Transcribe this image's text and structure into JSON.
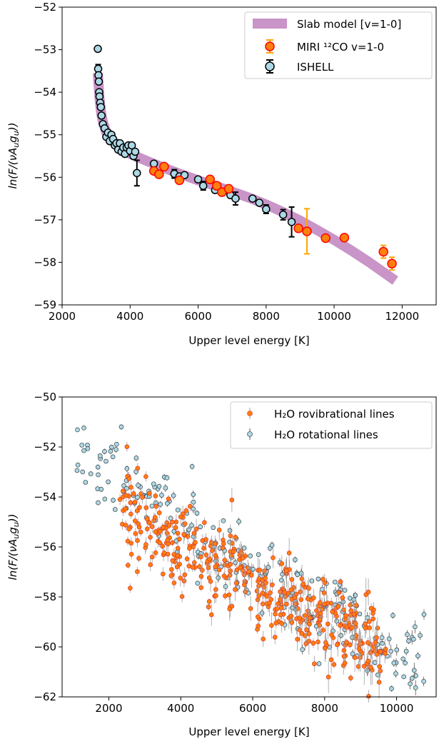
{
  "chart_data": [
    {
      "type": "scatter",
      "xlabel": "Upper level energy [K]",
      "ylabel": "ln(F/(νA_u g_u))",
      "xlim": [
        2000,
        13000
      ],
      "ylim": [
        -59,
        -52
      ],
      "xticks": [
        "2000",
        "4000",
        "6000",
        "8000",
        "10000",
        "12000"
      ],
      "yticks": [
        "−52",
        "−53",
        "−54",
        "−55",
        "−56",
        "−57",
        "−58",
        "−59"
      ],
      "legend_position": "top-right",
      "legend": [
        "Slab model [v=1-0]",
        "MIRI ¹²CO v=1-0",
        "ISHELL"
      ],
      "series": [
        {
          "name": "Slab model [v=1-0]",
          "kind": "band",
          "color": "#c994c7",
          "x": [
            3050,
            3100,
            3150,
            3200,
            3300,
            3450,
            3700,
            4000,
            4500,
            5000,
            5500,
            6000,
            6500,
            7000,
            7500,
            8000,
            8500,
            9000,
            9500,
            10000,
            10500,
            11000,
            11500,
            11800
          ],
          "y": [
            -53.55,
            -54.15,
            -54.5,
            -54.7,
            -54.95,
            -55.12,
            -55.3,
            -55.45,
            -55.62,
            -55.78,
            -55.93,
            -56.07,
            -56.2,
            -56.34,
            -56.48,
            -56.64,
            -56.82,
            -57.02,
            -57.24,
            -57.47,
            -57.72,
            -57.98,
            -58.26,
            -58.43
          ]
        },
        {
          "name": "MIRI ¹²CO v=1-0",
          "kind": "points",
          "color": "#ff7f0e",
          "edge": "#ff0000",
          "err_color": "#ffa500",
          "x": [
            4700,
            4850,
            5000,
            5450,
            6350,
            6550,
            6700,
            6900,
            8950,
            9200,
            9750,
            10300,
            11450,
            11700
          ],
          "y": [
            -55.85,
            -55.93,
            -55.75,
            -56.07,
            -56.05,
            -56.2,
            -56.35,
            -56.27,
            -57.2,
            -57.27,
            -57.43,
            -57.42,
            -57.75,
            -58.03
          ],
          "err": [
            0.05,
            0.05,
            0.05,
            0.05,
            0.05,
            0.05,
            0.05,
            0.05,
            0.08,
            0.53,
            0.05,
            0.05,
            0.15,
            0.15
          ]
        },
        {
          "name": "ISHELL",
          "kind": "points",
          "color": "#add8e6",
          "edge": "#000000",
          "err_color": "#000000",
          "x": [
            3050,
            3060,
            3070,
            3080,
            3090,
            3100,
            3120,
            3140,
            3160,
            3200,
            3250,
            3300,
            3350,
            3400,
            3450,
            3500,
            3550,
            3600,
            3650,
            3700,
            3750,
            3800,
            3850,
            3900,
            3950,
            4000,
            4050,
            4100,
            4150,
            4200,
            4700,
            5300,
            5450,
            5600,
            6000,
            6150,
            6500,
            6950,
            7100,
            7600,
            7800,
            8000,
            8500,
            8750
          ],
          "y": [
            -52.98,
            -53.45,
            -53.6,
            -53.75,
            -54.0,
            -54.1,
            -54.25,
            -54.35,
            -54.55,
            -54.75,
            -54.85,
            -55.05,
            -54.95,
            -55.15,
            -55.0,
            -55.1,
            -55.25,
            -55.2,
            -55.35,
            -55.2,
            -55.4,
            -55.3,
            -55.45,
            -55.3,
            -55.25,
            -55.38,
            -55.25,
            -55.5,
            -55.4,
            -55.9,
            -55.68,
            -55.92,
            -55.98,
            -55.95,
            -56.05,
            -56.2,
            -56.3,
            -56.42,
            -56.5,
            -56.5,
            -56.6,
            -56.75,
            -56.88,
            -57.05
          ],
          "err": [
            0.05,
            0.1,
            0.05,
            0.05,
            0.05,
            0.05,
            0.05,
            0.05,
            0.05,
            0.05,
            0.05,
            0.05,
            0.05,
            0.05,
            0.05,
            0.05,
            0.05,
            0.05,
            0.05,
            0.05,
            0.05,
            0.05,
            0.05,
            0.05,
            0.05,
            0.05,
            0.05,
            0.05,
            0.05,
            0.3,
            0.05,
            0.1,
            0.05,
            0.05,
            0.05,
            0.1,
            0.05,
            0.05,
            0.15,
            0.05,
            0.05,
            0.1,
            0.12,
            0.35
          ]
        }
      ]
    },
    {
      "type": "scatter",
      "xlabel": "Upper level energy [K]",
      "ylabel": "ln(F/(νA_u g_u))",
      "xlim": [
        700,
        11100
      ],
      "ylim": [
        -62,
        -50
      ],
      "xticks": [
        "2000",
        "4000",
        "6000",
        "8000",
        "10000"
      ],
      "yticks": [
        "−50",
        "−52",
        "−54",
        "−56",
        "−58",
        "−60",
        "−62"
      ],
      "legend_position": "top-right",
      "legend": [
        "H₂O rovibrational lines",
        "H₂O rotational lines"
      ],
      "series": [
        {
          "name": "H₂O rovibrational lines",
          "kind": "cloud",
          "color": "#ff7f0e",
          "edge": "#d62728",
          "err_color": "#9e9e9e",
          "count": 430,
          "x_range": [
            2300,
            9700
          ],
          "trend_y": [
            -54.6,
            -60.2
          ],
          "scatter": 0.85,
          "err": 0.25
        },
        {
          "name": "H₂O rotational lines",
          "kind": "cloud",
          "color": "#add8e6",
          "edge": "#222222",
          "err_color": "#555555",
          "count": 230,
          "x_range": [
            1100,
            10800
          ],
          "trend_y": [
            -52.3,
            -61.0
          ],
          "scatter": 0.95,
          "err": 0.1
        }
      ]
    }
  ]
}
